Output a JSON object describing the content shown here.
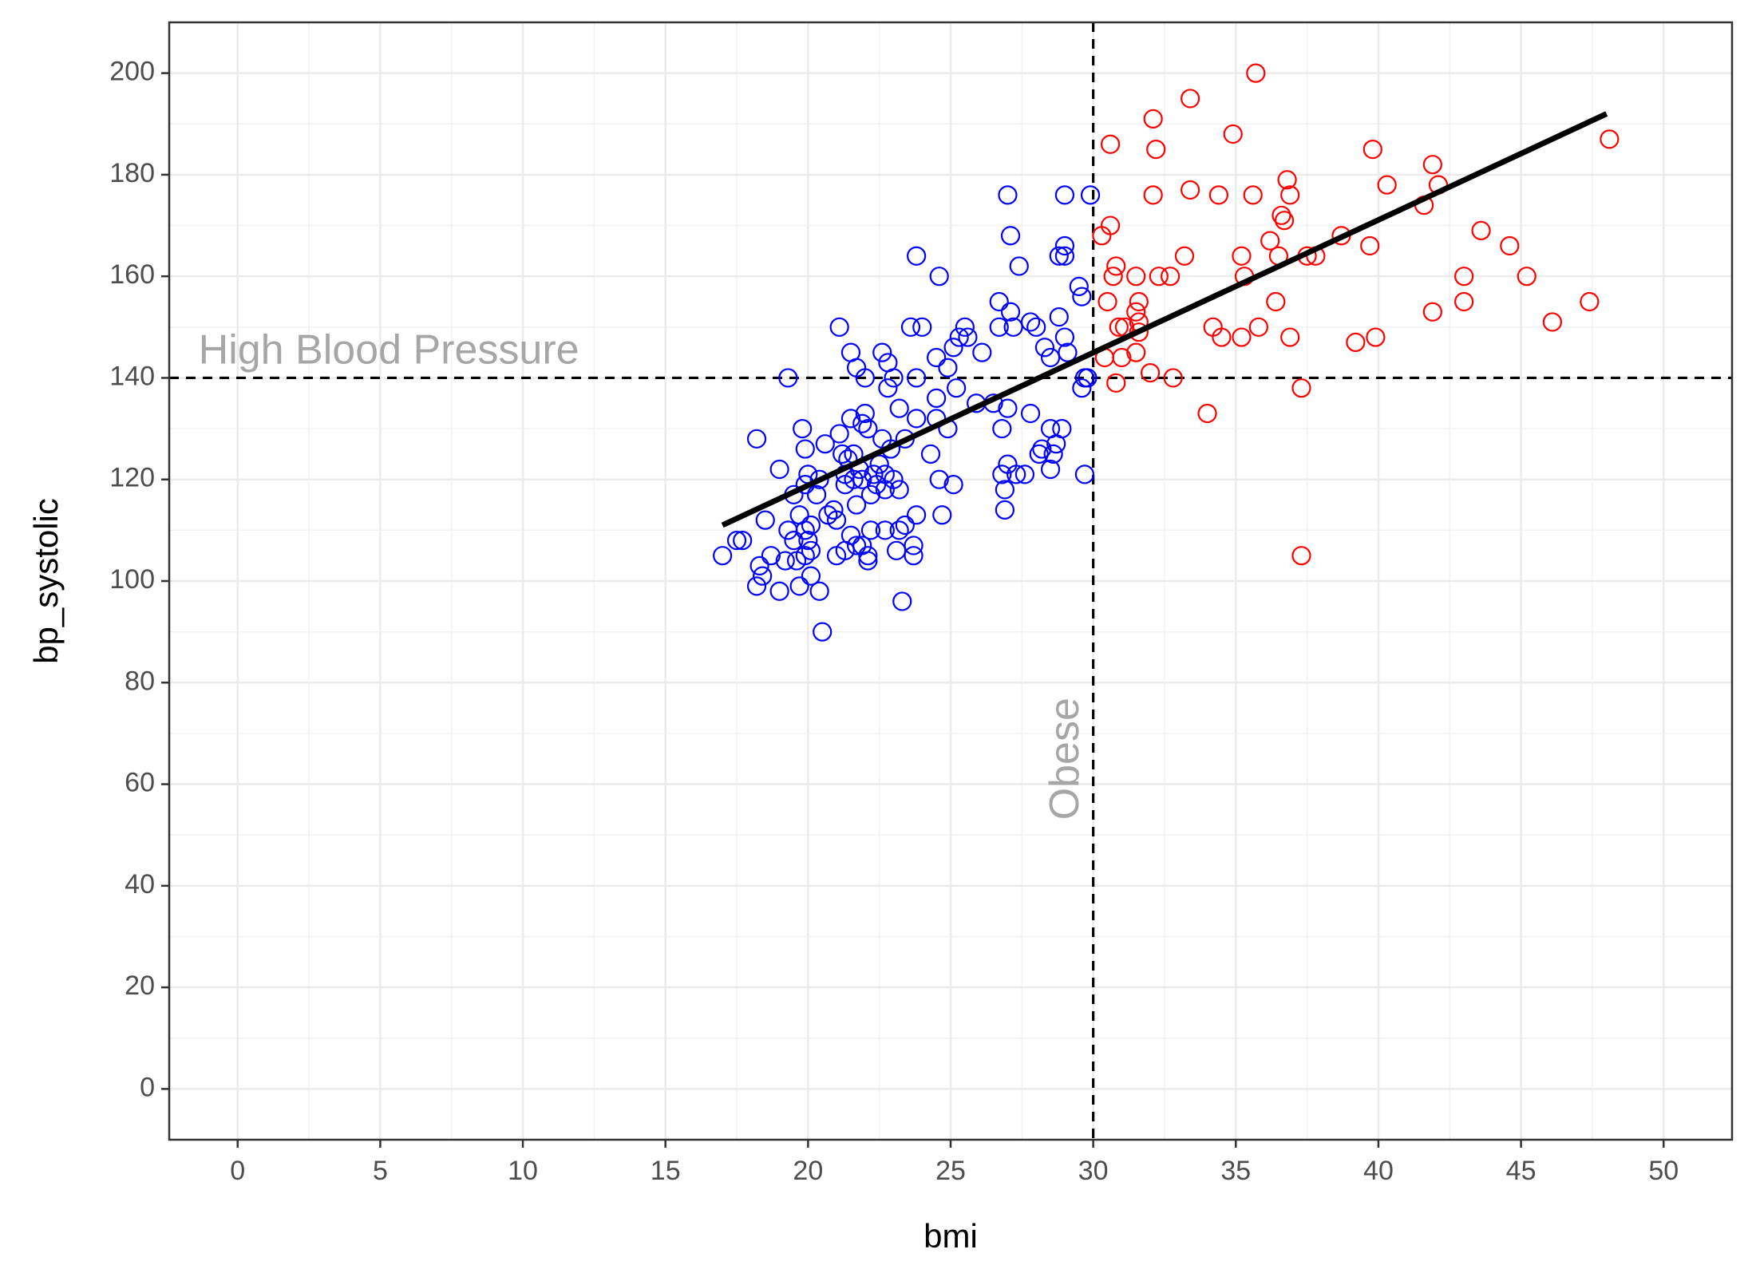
{
  "chart_data": {
    "type": "scatter",
    "xlabel": "bmi",
    "ylabel": "bp_systolic",
    "xlim": [
      -2.4,
      52.4
    ],
    "ylim": [
      -10,
      210
    ],
    "x_ticks": [
      0,
      5,
      10,
      15,
      20,
      25,
      30,
      35,
      40,
      45,
      50
    ],
    "y_ticks": [
      0,
      20,
      40,
      60,
      80,
      100,
      120,
      140,
      160,
      180,
      200
    ],
    "grid": true,
    "colors": {
      "not_obese": "#0000ff",
      "obese": "#ff0000",
      "trend": "#000000",
      "reference": "#000000",
      "annotation": "#a6a6a6"
    },
    "reference_lines": {
      "bmi": 30,
      "bp_systolic": 140
    },
    "annotations": {
      "high_bp": {
        "text": "High Blood Pressure",
        "x": 5.3,
        "y": 145
      },
      "obese": {
        "text": "Obese",
        "x": 29.1,
        "y": 65
      }
    },
    "trend_line": {
      "x": [
        17.0,
        48.0
      ],
      "y": [
        111,
        192
      ]
    },
    "series": [
      {
        "color_key": "not_obese",
        "points": [
          [
            17.0,
            105
          ],
          [
            17.5,
            108
          ],
          [
            17.7,
            108
          ],
          [
            18.2,
            128
          ],
          [
            18.2,
            99
          ],
          [
            18.3,
            103
          ],
          [
            18.4,
            101
          ],
          [
            18.5,
            112
          ],
          [
            18.7,
            105
          ],
          [
            19.0,
            98
          ],
          [
            19.0,
            122
          ],
          [
            19.2,
            104
          ],
          [
            19.3,
            140
          ],
          [
            19.3,
            110
          ],
          [
            19.5,
            108
          ],
          [
            19.5,
            117
          ],
          [
            19.6,
            104
          ],
          [
            19.7,
            113
          ],
          [
            19.7,
            99
          ],
          [
            19.8,
            130
          ],
          [
            19.9,
            126
          ],
          [
            19.9,
            119
          ],
          [
            19.9,
            110
          ],
          [
            19.9,
            105
          ],
          [
            20.0,
            121
          ],
          [
            20.0,
            108
          ],
          [
            20.1,
            111
          ],
          [
            20.1,
            101
          ],
          [
            20.1,
            106
          ],
          [
            20.3,
            117
          ],
          [
            20.4,
            120
          ],
          [
            20.4,
            98
          ],
          [
            20.5,
            90
          ],
          [
            20.6,
            127
          ],
          [
            20.7,
            113
          ],
          [
            20.9,
            114
          ],
          [
            21.0,
            105
          ],
          [
            21.0,
            112
          ],
          [
            21.1,
            150
          ],
          [
            21.1,
            129
          ],
          [
            21.2,
            125
          ],
          [
            21.3,
            119
          ],
          [
            21.3,
            106
          ],
          [
            21.3,
            121
          ],
          [
            21.4,
            124
          ],
          [
            21.5,
            145
          ],
          [
            21.5,
            109
          ],
          [
            21.5,
            132
          ],
          [
            21.6,
            125
          ],
          [
            21.6,
            120
          ],
          [
            21.7,
            142
          ],
          [
            21.7,
            115
          ],
          [
            21.7,
            107
          ],
          [
            21.8,
            122
          ],
          [
            21.9,
            131
          ],
          [
            21.9,
            120
          ],
          [
            21.9,
            107
          ],
          [
            22.0,
            140
          ],
          [
            22.0,
            133
          ],
          [
            22.1,
            130
          ],
          [
            22.1,
            105
          ],
          [
            22.1,
            104
          ],
          [
            22.2,
            117
          ],
          [
            22.2,
            110
          ],
          [
            22.3,
            121
          ],
          [
            22.4,
            119
          ],
          [
            22.5,
            123
          ],
          [
            22.6,
            145
          ],
          [
            22.6,
            128
          ],
          [
            22.7,
            121
          ],
          [
            22.7,
            118
          ],
          [
            22.7,
            110
          ],
          [
            22.8,
            143
          ],
          [
            22.8,
            138
          ],
          [
            22.9,
            126
          ],
          [
            23.0,
            140
          ],
          [
            23.0,
            120
          ],
          [
            23.1,
            106
          ],
          [
            23.2,
            134
          ],
          [
            23.2,
            118
          ],
          [
            23.2,
            110
          ],
          [
            23.3,
            96
          ],
          [
            23.4,
            128
          ],
          [
            23.4,
            111
          ],
          [
            23.6,
            150
          ],
          [
            23.7,
            107
          ],
          [
            23.7,
            105
          ],
          [
            23.8,
            164
          ],
          [
            23.8,
            140
          ],
          [
            23.8,
            132
          ],
          [
            23.8,
            113
          ],
          [
            24.0,
            150
          ],
          [
            24.3,
            125
          ],
          [
            24.5,
            144
          ],
          [
            24.5,
            136
          ],
          [
            24.5,
            132
          ],
          [
            24.6,
            160
          ],
          [
            24.6,
            120
          ],
          [
            24.7,
            113
          ],
          [
            24.9,
            142
          ],
          [
            24.9,
            130
          ],
          [
            25.1,
            146
          ],
          [
            25.1,
            119
          ],
          [
            25.2,
            138
          ],
          [
            25.3,
            148
          ],
          [
            25.5,
            150
          ],
          [
            25.6,
            148
          ],
          [
            25.9,
            135
          ],
          [
            26.1,
            145
          ],
          [
            26.5,
            135
          ],
          [
            26.7,
            155
          ],
          [
            26.7,
            150
          ],
          [
            26.8,
            121
          ],
          [
            26.8,
            130
          ],
          [
            26.9,
            118
          ],
          [
            26.9,
            114
          ],
          [
            27.0,
            123
          ],
          [
            27.0,
            134
          ],
          [
            27.0,
            176
          ],
          [
            27.1,
            168
          ],
          [
            27.1,
            153
          ],
          [
            27.2,
            150
          ],
          [
            27.3,
            121
          ],
          [
            27.4,
            162
          ],
          [
            27.6,
            121
          ],
          [
            27.8,
            133
          ],
          [
            27.8,
            151
          ],
          [
            28.0,
            150
          ],
          [
            28.1,
            125
          ],
          [
            28.2,
            126
          ],
          [
            28.3,
            146
          ],
          [
            28.5,
            144
          ],
          [
            28.5,
            130
          ],
          [
            28.5,
            122
          ],
          [
            28.6,
            125
          ],
          [
            28.7,
            127
          ],
          [
            28.8,
            152
          ],
          [
            28.8,
            164
          ],
          [
            28.9,
            130
          ],
          [
            29.0,
            166
          ],
          [
            29.0,
            164
          ],
          [
            29.0,
            176
          ],
          [
            29.0,
            148
          ],
          [
            29.1,
            145
          ],
          [
            29.5,
            158
          ],
          [
            29.6,
            156
          ],
          [
            29.6,
            138
          ],
          [
            29.7,
            140
          ],
          [
            29.7,
            121
          ],
          [
            29.8,
            140
          ],
          [
            29.9,
            176
          ]
        ]
      },
      {
        "color_key": "obese",
        "points": [
          [
            30.3,
            168
          ],
          [
            30.4,
            144
          ],
          [
            30.5,
            155
          ],
          [
            30.6,
            186
          ],
          [
            30.6,
            170
          ],
          [
            30.7,
            160
          ],
          [
            30.8,
            162
          ],
          [
            30.8,
            139
          ],
          [
            30.9,
            150
          ],
          [
            31.0,
            144
          ],
          [
            31.1,
            150
          ],
          [
            31.5,
            160
          ],
          [
            31.5,
            153
          ],
          [
            31.5,
            145
          ],
          [
            31.6,
            155
          ],
          [
            31.6,
            151
          ],
          [
            31.6,
            149
          ],
          [
            32.0,
            141
          ],
          [
            32.1,
            176
          ],
          [
            32.1,
            191
          ],
          [
            32.2,
            185
          ],
          [
            32.3,
            160
          ],
          [
            32.7,
            160
          ],
          [
            32.8,
            140
          ],
          [
            33.2,
            164
          ],
          [
            33.4,
            195
          ],
          [
            33.4,
            177
          ],
          [
            34.0,
            133
          ],
          [
            34.2,
            150
          ],
          [
            34.4,
            176
          ],
          [
            34.5,
            148
          ],
          [
            34.9,
            188
          ],
          [
            35.2,
            164
          ],
          [
            35.2,
            148
          ],
          [
            35.3,
            160
          ],
          [
            35.6,
            176
          ],
          [
            35.7,
            200
          ],
          [
            35.8,
            150
          ],
          [
            36.2,
            167
          ],
          [
            36.4,
            155
          ],
          [
            36.5,
            164
          ],
          [
            36.6,
            172
          ],
          [
            36.7,
            171
          ],
          [
            36.8,
            179
          ],
          [
            36.9,
            176
          ],
          [
            36.9,
            148
          ],
          [
            37.3,
            138
          ],
          [
            37.3,
            105
          ],
          [
            37.5,
            164
          ],
          [
            37.8,
            164
          ],
          [
            38.7,
            168
          ],
          [
            39.2,
            147
          ],
          [
            39.7,
            166
          ],
          [
            39.8,
            185
          ],
          [
            39.9,
            148
          ],
          [
            40.3,
            178
          ],
          [
            41.6,
            174
          ],
          [
            41.9,
            182
          ],
          [
            41.9,
            153
          ],
          [
            42.1,
            178
          ],
          [
            43.0,
            155
          ],
          [
            43.0,
            160
          ],
          [
            43.6,
            169
          ],
          [
            44.6,
            166
          ],
          [
            45.2,
            160
          ],
          [
            46.1,
            151
          ],
          [
            47.4,
            155
          ],
          [
            48.1,
            187
          ]
        ]
      }
    ]
  }
}
